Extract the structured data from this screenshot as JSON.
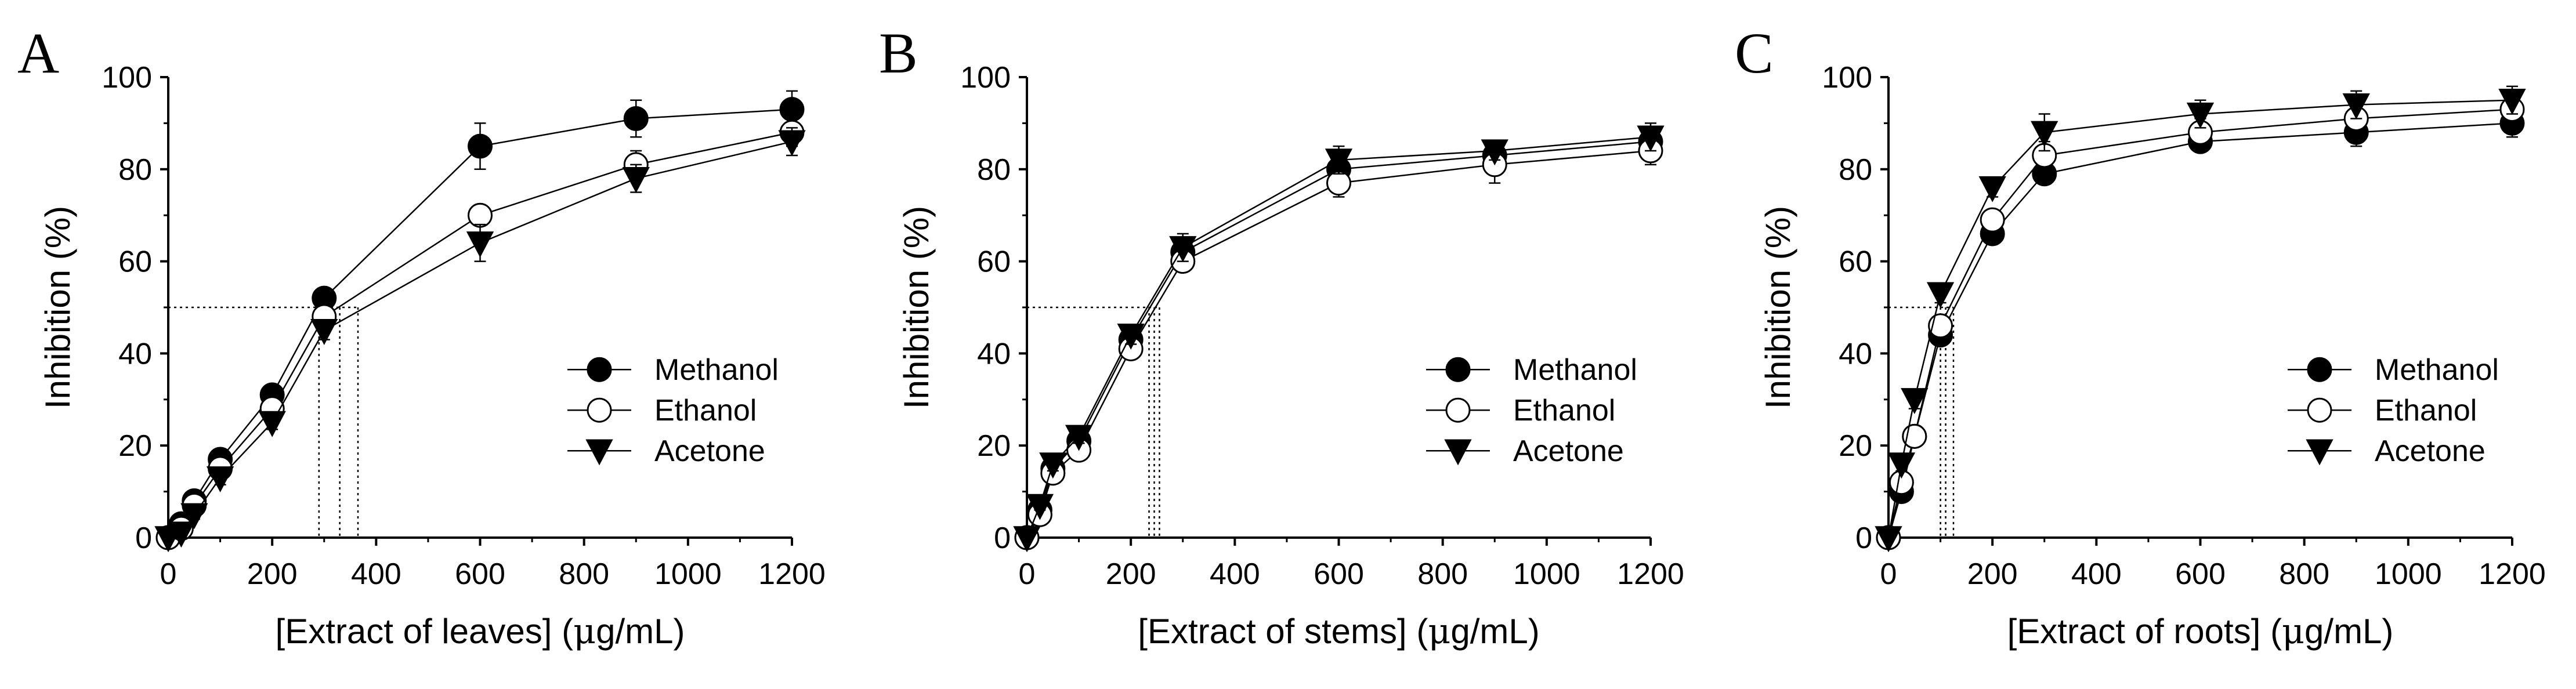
{
  "chart_data": [
    {
      "type": "line",
      "panel_label": "A",
      "xlabel_main": "[Extract of leaves]",
      "xlabel_mu": "μ",
      "xlabel_unit": "g/mL)",
      "xlabel_open": "(",
      "ylabel": "Inhibition (%)",
      "xlim": [
        0,
        1200
      ],
      "ylim": [
        0,
        100
      ],
      "x_ticks": [
        "0",
        "200",
        "400",
        "600",
        "800",
        "1000",
        "1200"
      ],
      "y_ticks": [
        "0",
        "20",
        "40",
        "60",
        "80",
        "100"
      ],
      "x": [
        0,
        25,
        50,
        100,
        200,
        300,
        600,
        900,
        1200
      ],
      "series": [
        {
          "name": "Methanol",
          "marker": "filled-circle",
          "values": [
            0,
            3,
            8,
            17,
            31,
            52,
            85,
            91,
            93
          ],
          "errors": [
            0,
            1,
            1,
            1.5,
            1.5,
            2,
            5,
            4,
            4
          ]
        },
        {
          "name": "Ethanol",
          "marker": "open-circle",
          "values": [
            0,
            2,
            7,
            15,
            28,
            48,
            70,
            81,
            88
          ],
          "errors": [
            0,
            1,
            1,
            1.5,
            1.5,
            2,
            2,
            3,
            3
          ]
        },
        {
          "name": "Acetone",
          "marker": "filled-triangle-down",
          "values": [
            0,
            1,
            5,
            13,
            25,
            45,
            64,
            78,
            86
          ],
          "errors": [
            0,
            1,
            1,
            1.5,
            1.5,
            2,
            4,
            3,
            3
          ]
        }
      ],
      "ic50_guides": {
        "y": 50,
        "x": [
          290,
          330,
          365
        ]
      },
      "legend_position": "lower-right"
    },
    {
      "type": "line",
      "panel_label": "B",
      "xlabel_main": "[Extract of stems]",
      "xlabel_mu": "μ",
      "xlabel_unit": "g/mL)",
      "xlabel_open": "(",
      "ylabel": "Inhibition (%)",
      "xlim": [
        0,
        1200
      ],
      "ylim": [
        0,
        100
      ],
      "x_ticks": [
        "0",
        "200",
        "400",
        "600",
        "800",
        "1000",
        "1200"
      ],
      "y_ticks": [
        "0",
        "20",
        "40",
        "60",
        "80",
        "100"
      ],
      "x": [
        0,
        25,
        50,
        100,
        200,
        300,
        600,
        900,
        1200
      ],
      "series": [
        {
          "name": "Methanol",
          "marker": "filled-circle",
          "values": [
            0,
            6,
            15,
            21,
            43,
            62,
            80,
            83,
            86
          ],
          "errors": [
            0,
            1,
            1.5,
            1.5,
            2,
            2,
            2,
            2,
            2
          ]
        },
        {
          "name": "Ethanol",
          "marker": "open-circle",
          "values": [
            0,
            5,
            14,
            19,
            41,
            60,
            77,
            81,
            84
          ],
          "errors": [
            0,
            1,
            1.5,
            1.5,
            2,
            2,
            3,
            4,
            3
          ]
        },
        {
          "name": "Acetone",
          "marker": "filled-triangle-down",
          "values": [
            0,
            7,
            16,
            22,
            44,
            63,
            82,
            84,
            87
          ],
          "errors": [
            0,
            1,
            1.5,
            1.5,
            2,
            3,
            3,
            2,
            3
          ]
        }
      ],
      "ic50_guides": {
        "y": 50,
        "x": [
          235,
          245,
          255
        ]
      },
      "legend_position": "lower-right"
    },
    {
      "type": "line",
      "panel_label": "C",
      "xlabel_main": "[Extract of roots]",
      "xlabel_mu": "μ",
      "xlabel_unit": "g/mL)",
      "xlabel_open": "(",
      "ylabel": "Inhibition (%)",
      "xlim": [
        0,
        1200
      ],
      "ylim": [
        0,
        100
      ],
      "x_ticks": [
        "0",
        "200",
        "400",
        "600",
        "800",
        "1000",
        "1200"
      ],
      "y_ticks": [
        "0",
        "20",
        "40",
        "60",
        "80",
        "100"
      ],
      "x": [
        0,
        25,
        50,
        100,
        200,
        300,
        600,
        900,
        1200
      ],
      "series": [
        {
          "name": "Methanol",
          "marker": "filled-circle",
          "values": [
            0,
            10,
            22,
            44,
            66,
            79,
            86,
            88,
            90
          ],
          "errors": [
            0,
            1.5,
            2,
            2,
            2,
            2,
            2,
            3,
            3
          ]
        },
        {
          "name": "Ethanol",
          "marker": "open-circle",
          "values": [
            0,
            12,
            22,
            46,
            69,
            83,
            88,
            91,
            93
          ],
          "errors": [
            0,
            1.5,
            2,
            2,
            2,
            3,
            3,
            3,
            3
          ]
        },
        {
          "name": "Acetone",
          "marker": "filled-triangle-down",
          "values": [
            0,
            16,
            30,
            53,
            76,
            88,
            92,
            94,
            95
          ],
          "errors": [
            0,
            1.5,
            2,
            2,
            2,
            4,
            3,
            3,
            3
          ]
        }
      ],
      "ic50_guides": {
        "y": 50,
        "x": [
          100,
          110,
          125
        ]
      },
      "legend_position": "lower-right"
    }
  ]
}
